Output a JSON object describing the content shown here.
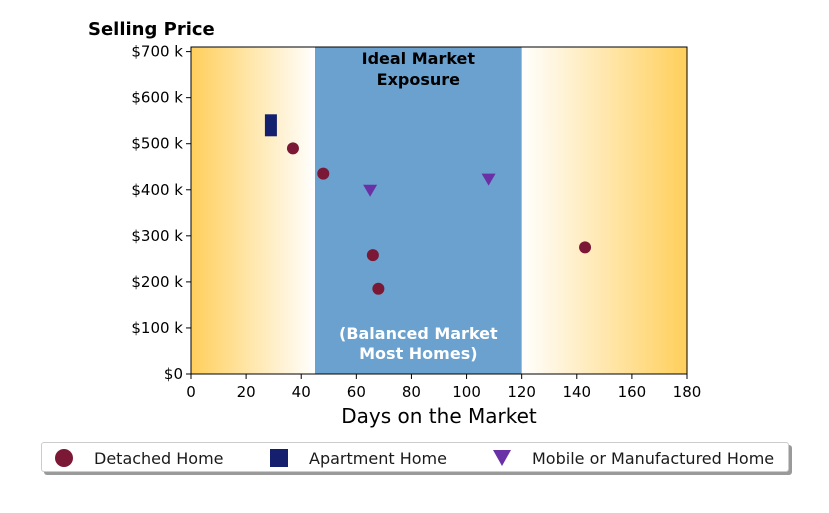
{
  "chart_data": {
    "type": "scatter",
    "title": "Selling Price",
    "xlabel": "Days on the Market",
    "ylabel": "",
    "xlim": [
      0,
      180
    ],
    "ylim": [
      0,
      710000
    ],
    "x_ticks": [
      0,
      20,
      40,
      60,
      80,
      100,
      120,
      140,
      160,
      180
    ],
    "x_tick_labels": [
      "0",
      "20",
      "40",
      "60",
      "80",
      "100",
      "120",
      "140",
      "160",
      "180"
    ],
    "y_ticks": [
      0,
      100000,
      200000,
      300000,
      400000,
      500000,
      600000,
      700000
    ],
    "y_tick_labels": [
      "$0",
      "$100 k",
      "$200 k",
      "$300 k",
      "$400 k",
      "$500 k",
      "$600 k",
      "$700 k"
    ],
    "grid": false,
    "legend_position": "bottom",
    "band": {
      "x_start": 45,
      "x_end": 120,
      "color": "#6aa1ce",
      "label_top": [
        "Ideal Market",
        "Exposure"
      ],
      "label_bottom": [
        "(Balanced Market",
        "Most Homes)"
      ]
    },
    "background_gradient": {
      "edge_color": "#ffcf5c",
      "center_color": "#ffffff"
    },
    "series": [
      {
        "name": "Detached Home",
        "marker": "circle",
        "color": "#7b1836",
        "points": [
          {
            "x": 37,
            "y": 490000
          },
          {
            "x": 48,
            "y": 435000
          },
          {
            "x": 66,
            "y": 258000
          },
          {
            "x": 68,
            "y": 185000
          },
          {
            "x": 143,
            "y": 275000
          }
        ]
      },
      {
        "name": "Apartment Home",
        "marker": "square",
        "color": "#14206e",
        "points": [
          {
            "x": 29,
            "y": 540000
          }
        ]
      },
      {
        "name": "Mobile or Manufactured Home",
        "marker": "triangle-down",
        "color": "#6a31a6",
        "points": [
          {
            "x": 65,
            "y": 398000
          },
          {
            "x": 108,
            "y": 422000
          }
        ]
      }
    ]
  }
}
